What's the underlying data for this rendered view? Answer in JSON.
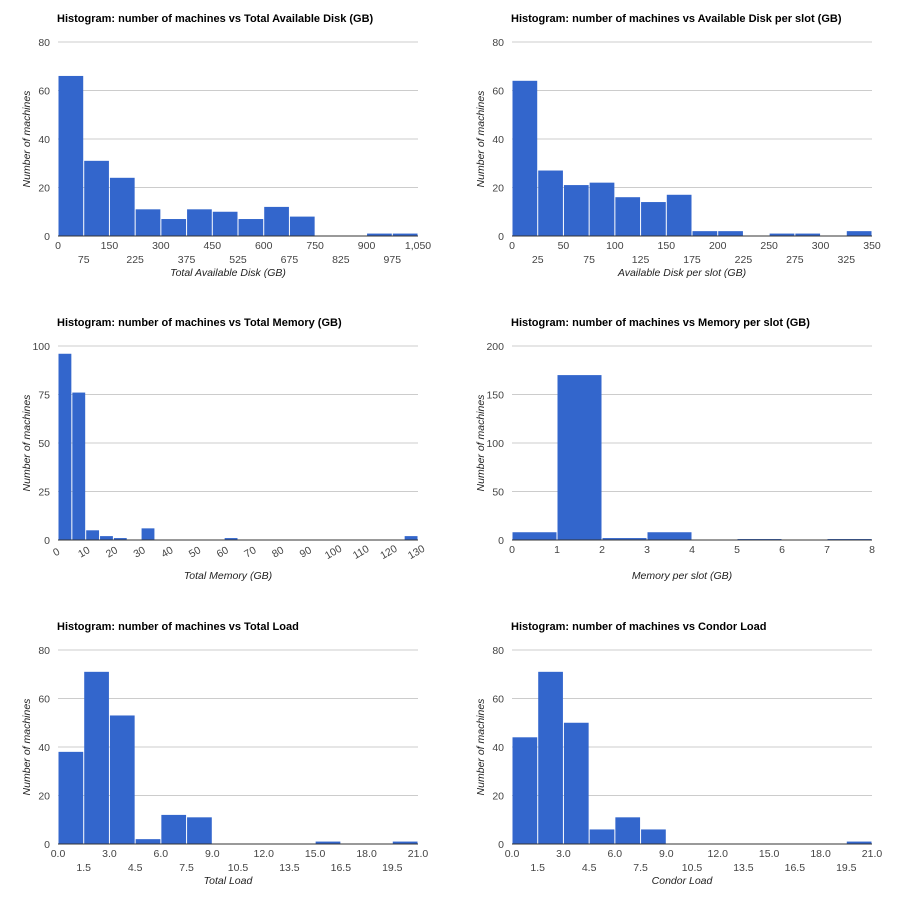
{
  "charts": [
    {
      "type": "bar",
      "title": "Histogram: number of machines vs Total Available Disk (GB)",
      "xlabel": "Total Available Disk (GB)",
      "ylabel": "Number of machines",
      "bar_color": "#3366cc",
      "ylim": [
        0,
        80
      ],
      "yticks": [
        0,
        20,
        40,
        60,
        80
      ],
      "xlim": [
        0,
        1050
      ],
      "xticks_top": [
        "0",
        "150",
        "300",
        "450",
        "600",
        "750",
        "900",
        "1,050"
      ],
      "xticks_top_pos": [
        0,
        150,
        300,
        450,
        600,
        750,
        900,
        1050
      ],
      "xticks_bottom": [
        "75",
        "225",
        "375",
        "525",
        "675",
        "825",
        "975"
      ],
      "xticks_bottom_pos": [
        75,
        225,
        375,
        525,
        675,
        825,
        975
      ],
      "xtick_rotated": false,
      "bins": [
        [
          0,
          75
        ],
        [
          75,
          150
        ],
        [
          150,
          225
        ],
        [
          225,
          300
        ],
        [
          300,
          375
        ],
        [
          375,
          450
        ],
        [
          450,
          525
        ],
        [
          525,
          600
        ],
        [
          600,
          675
        ],
        [
          675,
          750
        ],
        [
          750,
          825
        ],
        [
          825,
          900
        ],
        [
          900,
          975
        ],
        [
          975,
          1050
        ]
      ],
      "values": [
        66,
        31,
        24,
        11,
        7,
        11,
        10,
        7,
        12,
        8,
        0,
        0,
        1,
        1
      ]
    },
    {
      "type": "bar",
      "title": "Histogram: number of machines vs Available Disk per slot (GB)",
      "xlabel": "Available Disk per slot (GB)",
      "ylabel": "Number of machines",
      "bar_color": "#3366cc",
      "ylim": [
        0,
        80
      ],
      "yticks": [
        0,
        20,
        40,
        60,
        80
      ],
      "xlim": [
        0,
        350
      ],
      "xticks_top": [
        "0",
        "50",
        "100",
        "150",
        "200",
        "250",
        "300",
        "350"
      ],
      "xticks_top_pos": [
        0,
        50,
        100,
        150,
        200,
        250,
        300,
        350
      ],
      "xticks_bottom": [
        "25",
        "75",
        "125",
        "175",
        "225",
        "275",
        "325"
      ],
      "xticks_bottom_pos": [
        25,
        75,
        125,
        175,
        225,
        275,
        325
      ],
      "xtick_rotated": false,
      "bins": [
        [
          0,
          25
        ],
        [
          25,
          50
        ],
        [
          50,
          75
        ],
        [
          75,
          100
        ],
        [
          100,
          125
        ],
        [
          125,
          150
        ],
        [
          150,
          175
        ],
        [
          175,
          200
        ],
        [
          200,
          225
        ],
        [
          225,
          250
        ],
        [
          250,
          275
        ],
        [
          275,
          300
        ],
        [
          300,
          325
        ],
        [
          325,
          350
        ]
      ],
      "values": [
        64,
        27,
        21,
        22,
        16,
        14,
        17,
        2,
        2,
        0,
        1,
        1,
        0,
        2
      ]
    },
    {
      "type": "bar",
      "title": "Histogram: number of machines vs Total Memory (GB)",
      "xlabel": "Total Memory (GB)",
      "ylabel": "Number of machines",
      "bar_color": "#3366cc",
      "ylim": [
        0,
        100
      ],
      "yticks": [
        0,
        25,
        50,
        75,
        100
      ],
      "xlim": [
        0,
        130
      ],
      "xticks_top": [
        "0",
        "10",
        "20",
        "30",
        "40",
        "50",
        "60",
        "70",
        "80",
        "90",
        "100",
        "110",
        "120",
        "130"
      ],
      "xticks_top_pos": [
        0,
        10,
        20,
        30,
        40,
        50,
        60,
        70,
        80,
        90,
        100,
        110,
        120,
        130
      ],
      "xticks_bottom": [],
      "xticks_bottom_pos": [],
      "xtick_rotated": true,
      "bins": [
        [
          0,
          5
        ],
        [
          5,
          10
        ],
        [
          10,
          15
        ],
        [
          15,
          20
        ],
        [
          20,
          25
        ],
        [
          25,
          30
        ],
        [
          30,
          35
        ],
        [
          35,
          40
        ],
        [
          40,
          45
        ],
        [
          45,
          50
        ],
        [
          50,
          55
        ],
        [
          55,
          60
        ],
        [
          60,
          65
        ],
        [
          65,
          70
        ],
        [
          70,
          75
        ],
        [
          75,
          80
        ],
        [
          80,
          85
        ],
        [
          85,
          90
        ],
        [
          90,
          95
        ],
        [
          95,
          100
        ],
        [
          100,
          105
        ],
        [
          105,
          110
        ],
        [
          110,
          115
        ],
        [
          115,
          120
        ],
        [
          120,
          125
        ],
        [
          125,
          130
        ]
      ],
      "values": [
        96,
        76,
        5,
        2,
        1,
        0,
        6,
        0,
        0,
        0,
        0,
        0,
        1,
        0,
        0,
        0,
        0,
        0,
        0,
        0,
        0,
        0,
        0,
        0,
        0,
        2
      ]
    },
    {
      "type": "bar",
      "title": "Histogram: number of machines vs Memory per slot (GB)",
      "xlabel": "Memory per slot (GB)",
      "ylabel": "Number of machines",
      "bar_color": "#3366cc",
      "ylim": [
        0,
        200
      ],
      "yticks": [
        0,
        50,
        100,
        150,
        200
      ],
      "xlim": [
        0,
        8
      ],
      "xticks_top": [
        "0",
        "1",
        "2",
        "3",
        "4",
        "5",
        "6",
        "7",
        "8"
      ],
      "xticks_top_pos": [
        0,
        1,
        2,
        3,
        4,
        5,
        6,
        7,
        8
      ],
      "xticks_bottom": [],
      "xticks_bottom_pos": [],
      "xtick_rotated": false,
      "bins": [
        [
          0,
          1
        ],
        [
          1,
          2
        ],
        [
          2,
          3
        ],
        [
          3,
          4
        ],
        [
          4,
          5
        ],
        [
          5,
          6
        ],
        [
          6,
          7
        ],
        [
          7,
          8
        ]
      ],
      "values": [
        8,
        170,
        2,
        8,
        0,
        1,
        0,
        1
      ]
    },
    {
      "type": "bar",
      "title": "Histogram: number of machines vs Total Load",
      "xlabel": "Total Load",
      "ylabel": "Number of machines",
      "bar_color": "#3366cc",
      "ylim": [
        0,
        80
      ],
      "yticks": [
        0,
        20,
        40,
        60,
        80
      ],
      "xlim": [
        0,
        21
      ],
      "xticks_top": [
        "0.0",
        "3.0",
        "6.0",
        "9.0",
        "12.0",
        "15.0",
        "18.0",
        "21.0"
      ],
      "xticks_top_pos": [
        0,
        3,
        6,
        9,
        12,
        15,
        18,
        21
      ],
      "xticks_bottom": [
        "1.5",
        "4.5",
        "7.5",
        "10.5",
        "13.5",
        "16.5",
        "19.5"
      ],
      "xticks_bottom_pos": [
        1.5,
        4.5,
        7.5,
        10.5,
        13.5,
        16.5,
        19.5
      ],
      "xtick_rotated": false,
      "bins": [
        [
          0,
          1.5
        ],
        [
          1.5,
          3
        ],
        [
          3,
          4.5
        ],
        [
          4.5,
          6
        ],
        [
          6,
          7.5
        ],
        [
          7.5,
          9
        ],
        [
          9,
          10.5
        ],
        [
          10.5,
          12
        ],
        [
          12,
          13.5
        ],
        [
          13.5,
          15
        ],
        [
          15,
          16.5
        ],
        [
          16.5,
          18
        ],
        [
          18,
          19.5
        ],
        [
          19.5,
          21
        ]
      ],
      "values": [
        38,
        71,
        53,
        2,
        12,
        11,
        0,
        0,
        0,
        0,
        1,
        0,
        0,
        1
      ]
    },
    {
      "type": "bar",
      "title": "Histogram: number of machines vs Condor Load",
      "xlabel": "Condor Load",
      "ylabel": "Number of machines",
      "bar_color": "#3366cc",
      "ylim": [
        0,
        80
      ],
      "yticks": [
        0,
        20,
        40,
        60,
        80
      ],
      "xlim": [
        0,
        21
      ],
      "xticks_top": [
        "0.0",
        "3.0",
        "6.0",
        "9.0",
        "12.0",
        "15.0",
        "18.0",
        "21.0"
      ],
      "xticks_top_pos": [
        0,
        3,
        6,
        9,
        12,
        15,
        18,
        21
      ],
      "xticks_bottom": [
        "1.5",
        "4.5",
        "7.5",
        "10.5",
        "13.5",
        "16.5",
        "19.5"
      ],
      "xticks_bottom_pos": [
        1.5,
        4.5,
        7.5,
        10.5,
        13.5,
        16.5,
        19.5
      ],
      "xtick_rotated": false,
      "bins": [
        [
          0,
          1.5
        ],
        [
          1.5,
          3
        ],
        [
          3,
          4.5
        ],
        [
          4.5,
          6
        ],
        [
          6,
          7.5
        ],
        [
          7.5,
          9
        ],
        [
          9,
          10.5
        ],
        [
          10.5,
          12
        ],
        [
          12,
          13.5
        ],
        [
          13.5,
          15
        ],
        [
          15,
          16.5
        ],
        [
          16.5,
          18
        ],
        [
          18,
          19.5
        ],
        [
          19.5,
          21
        ]
      ],
      "values": [
        44,
        71,
        50,
        6,
        11,
        6,
        0,
        0,
        0,
        0,
        0,
        0,
        0,
        1
      ]
    }
  ]
}
